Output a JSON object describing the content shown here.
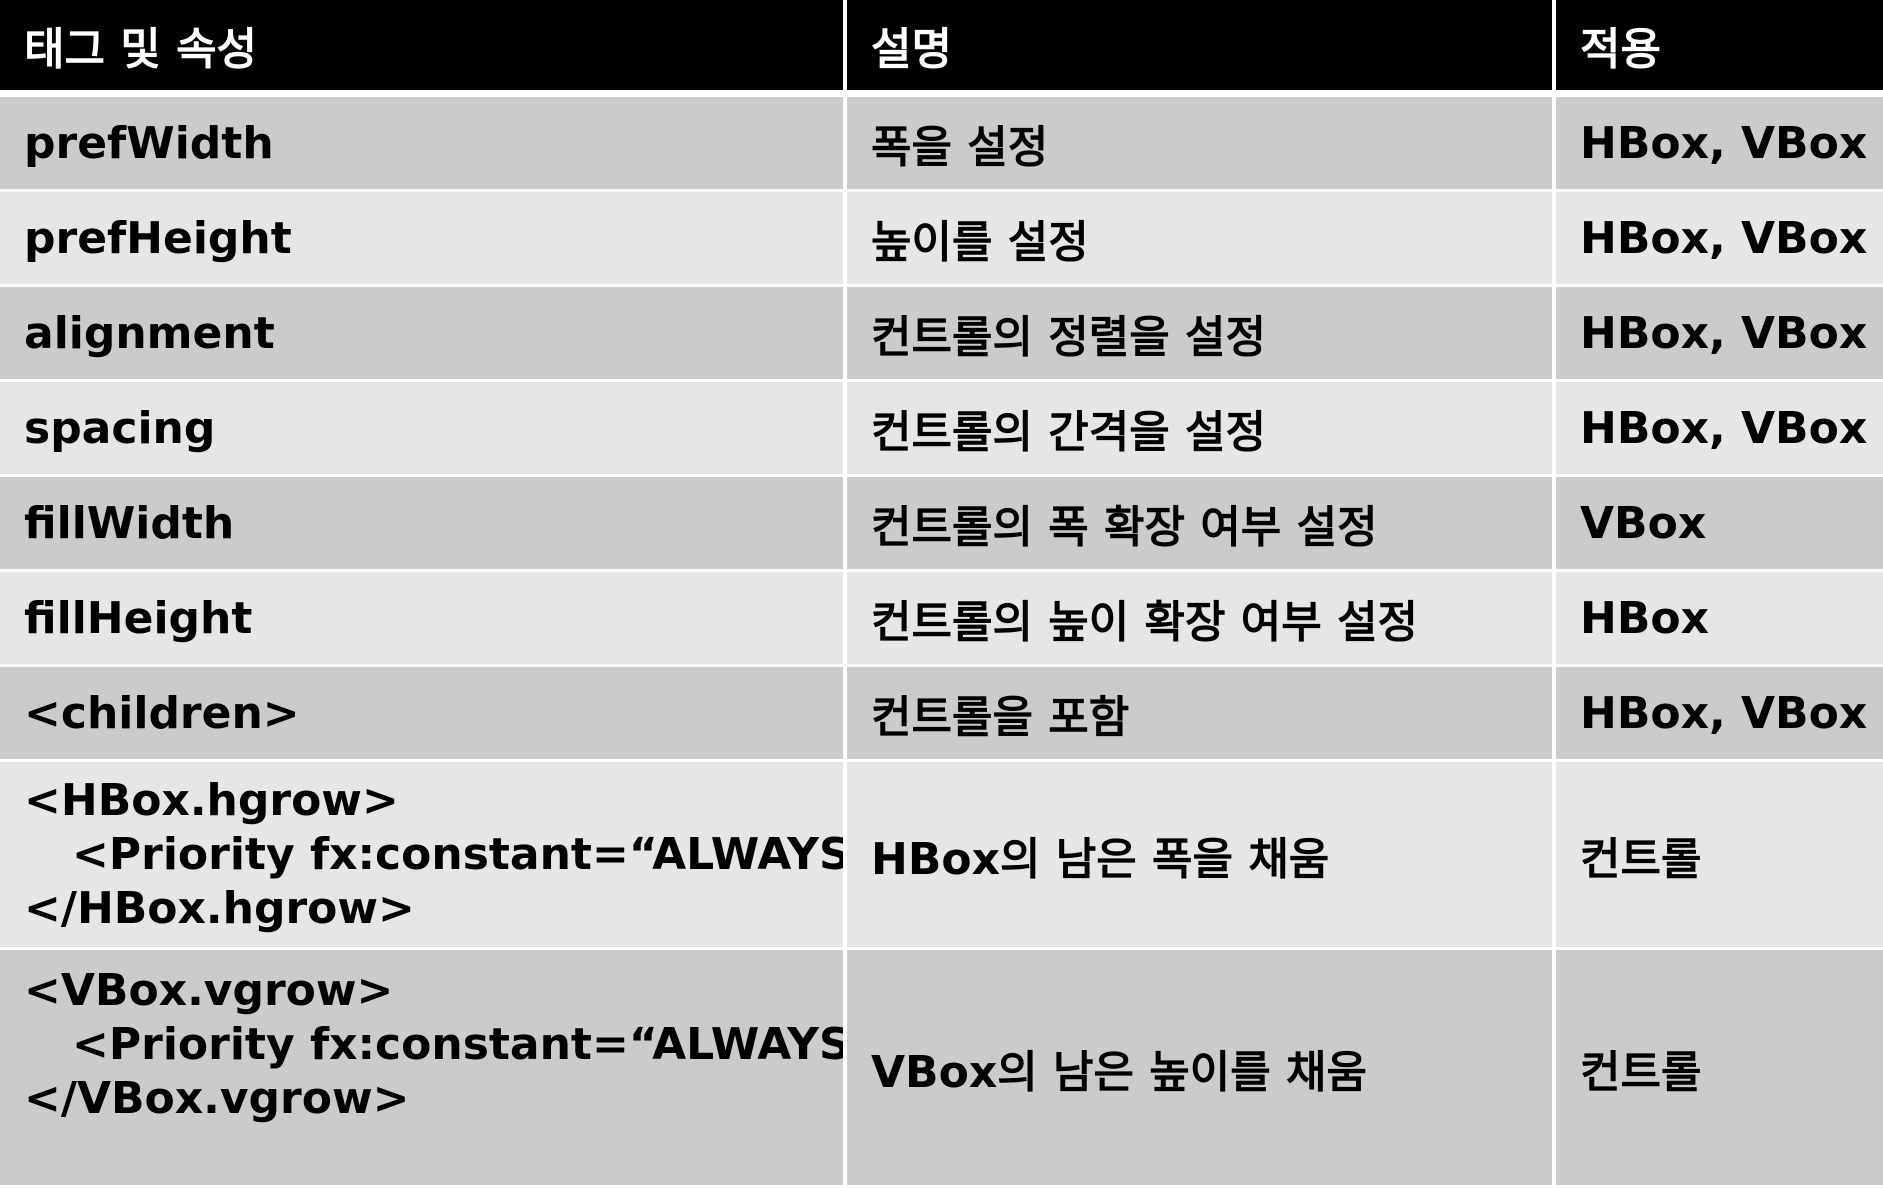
{
  "table": {
    "headers": [
      "태그 및 속성",
      "설명",
      "적용"
    ],
    "rows": [
      {
        "tag": "prefWidth",
        "desc": "폭을 설정",
        "applies": "HBox, VBox"
      },
      {
        "tag": "prefHeight",
        "desc": "높이를 설정",
        "applies": "HBox, VBox"
      },
      {
        "tag": "alignment",
        "desc": "컨트롤의 정렬을 설정",
        "applies": "HBox, VBox"
      },
      {
        "tag": "spacing",
        "desc": "컨트롤의 간격을 설정",
        "applies": "HBox, VBox"
      },
      {
        "tag": "fillWidth",
        "desc": "컨트롤의 폭 확장 여부 설정",
        "applies": "VBox"
      },
      {
        "tag": "fillHeight",
        "desc": "컨트롤의 높이 확장 여부 설정",
        "applies": "HBox"
      },
      {
        "tag": "<children>",
        "desc": "컨트롤을 포함",
        "applies": "HBox, VBox"
      },
      {
        "tag_lines": [
          "<HBox.hgrow>",
          "<Priority fx:constant=“ALWAYS”/>",
          "</HBox.hgrow>"
        ],
        "desc": "HBox의 남은 폭을 채움",
        "applies": "컨트롤"
      },
      {
        "tag_lines": [
          "<VBox.vgrow>",
          "<Priority fx:constant=“ALWAYS”/>",
          "</VBox.vgrow>"
        ],
        "desc": "VBox의 남은 높이를 채움",
        "applies": "컨트롤"
      }
    ]
  },
  "colors": {
    "header_bg": "#000000",
    "header_text": "#ffffff",
    "row_dark": "#cbcbcb",
    "row_light": "#e6e6e6"
  }
}
